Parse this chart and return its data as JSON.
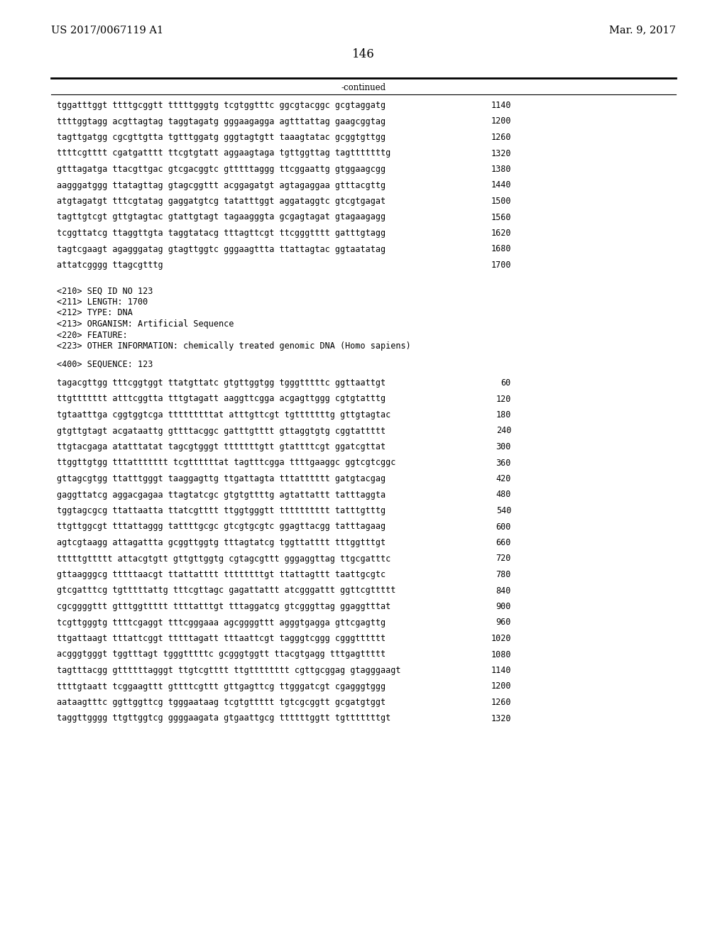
{
  "header_left": "US 2017/0067119 A1",
  "header_right": "Mar. 9, 2017",
  "page_number": "146",
  "continued_label": "-continued",
  "background_color": "#ffffff",
  "text_color": "#000000",
  "font_size_header": 10.5,
  "font_size_body": 8.5,
  "font_size_page": 12.0,
  "sequence_lines_top": [
    [
      "tggatttggt ttttgcggtt tttttgggtg tcgtggtttc ggcgtacggc gcgtaggatg",
      "1140"
    ],
    [
      "ttttggtagg acgttagtag taggtagatg gggaagagga agtttattag gaagcggtag",
      "1200"
    ],
    [
      "tagttgatgg cgcgttgtta tgtttggatg gggtagtgtt taaagtatac gcggtgttgg",
      "1260"
    ],
    [
      "ttttcgtttt cgatgatttt ttcgtgtatt aggaagtaga tgttggttag tagtttttttg",
      "1320"
    ],
    [
      "gtttagatga ttacgttgac gtcgacggtc gtttttaggg ttcggaattg gtggaagcgg",
      "1380"
    ],
    [
      "aagggatggg ttatagttag gtagcggttt acggagatgt agtagaggaa gtttacgttg",
      "1440"
    ],
    [
      "atgtagatgt tttcgtatag gaggatgtcg tatatttggt aggataggtc gtcgtgagat",
      "1500"
    ],
    [
      "tagttgtcgt gttgtagtac gtattgtagt tagaagggta gcgagtagat gtagaagagg",
      "1560"
    ],
    [
      "tcggttatcg ttaggttgta taggtatacg tttagttcgt ttcgggtttt gatttgtagg",
      "1620"
    ],
    [
      "tagtcgaagt agagggatag gtagttggtc gggaagttta ttattagtac ggtaatatag",
      "1680"
    ],
    [
      "attatcgggg ttagcgtttg",
      "1700"
    ]
  ],
  "metadata_lines": [
    "<210> SEQ ID NO 123",
    "<211> LENGTH: 1700",
    "<212> TYPE: DNA",
    "<213> ORGANISM: Artificial Sequence",
    "<220> FEATURE:",
    "<223> OTHER INFORMATION: chemically treated genomic DNA (Homo sapiens)"
  ],
  "seq400_label": "<400> SEQUENCE: 123",
  "sequence_lines_bottom": [
    [
      "tagacgttgg tttcggtggt ttatgttatc gtgttggtgg tgggtttttc ggttaattgt",
      "60"
    ],
    [
      "ttgttttttt atttcggtta tttgtagatt aaggttcgga acgagttggg cgtgtatttg",
      "120"
    ],
    [
      "tgtaatttga cggtggtcga tttttttttat atttgttcgt tgtttttttg gttgtagtac",
      "180"
    ],
    [
      "gtgttgtagt acgataattg gttttacggc gatttgtttt gttaggtgtg cggtattttt",
      "240"
    ],
    [
      "ttgtacgaga atatttatat tagcgtgggt tttttttgtt gtattttcgt ggatcgttat",
      "300"
    ],
    [
      "ttggttgtgg tttattttttt tcgttttttat tagtttcgga ttttgaaggc ggtcgtcggc",
      "360"
    ],
    [
      "gttagcgtgg ttatttgggt taaggagttg ttgattagta tttatttttt gatgtacgag",
      "420"
    ],
    [
      "gaggttatcg aggacgagaa ttagtatcgc gtgtgttttg agtattattt tatttaggta",
      "480"
    ],
    [
      "tggtagcgcg ttattaatta ttatcgtttt ttggtgggtt tttttttttt tatttgtttg",
      "540"
    ],
    [
      "ttgttggcgt tttattaggg tattttgcgc gtcgtgcgtc ggagttacgg tatttagaag",
      "600"
    ],
    [
      "agtcgtaagg attagattta gcggttggtg tttagtatcg tggttatttt tttggtttgt",
      "660"
    ],
    [
      "tttttgttttt attacgtgtt gttgttggtg cgtagcgttt gggaggttag ttgcgatttc",
      "720"
    ],
    [
      "gttaagggcg tttttaacgt ttattatttt ttttttttgt ttattagttt taattgcgtc",
      "780"
    ],
    [
      "gtcgatttcg tgtttttattg tttcgttagc gagattattt atcgggattt ggttcgttttt",
      "840"
    ],
    [
      "cgcggggttt gtttggttttt ttttatttgt tttaggatcg gtcgggttag ggaggtttat",
      "900"
    ],
    [
      "tcgttgggtg ttttcgaggt tttcgggaaa agcggggttt agggtgagga gttcgagttg",
      "960"
    ],
    [
      "ttgattaagt tttattcggt tttttagatt tttaattcgt tagggtcggg cgggtttttt",
      "1020"
    ],
    [
      "acgggtgggt tggtttagt tgggtttttc gcgggtggtt ttacgtgagg tttgagttttt",
      "1080"
    ],
    [
      "tagtttacgg gttttttagggt ttgtcgtttt ttgtttttttt cgttgcggag gtagggaagt",
      "1140"
    ],
    [
      "ttttgtaatt tcggaagttt gttttcgttt gttgagttcg ttgggatcgt cgagggtggg",
      "1200"
    ],
    [
      "aataagtttc ggttggttcg tgggaataag tcgtgttttt tgtcgcggtt gcgatgtggt",
      "1260"
    ],
    [
      "taggttgggg ttgttggtcg ggggaagata gtgaattgcg ttttttggtt tgtttttttgt",
      "1320"
    ]
  ]
}
